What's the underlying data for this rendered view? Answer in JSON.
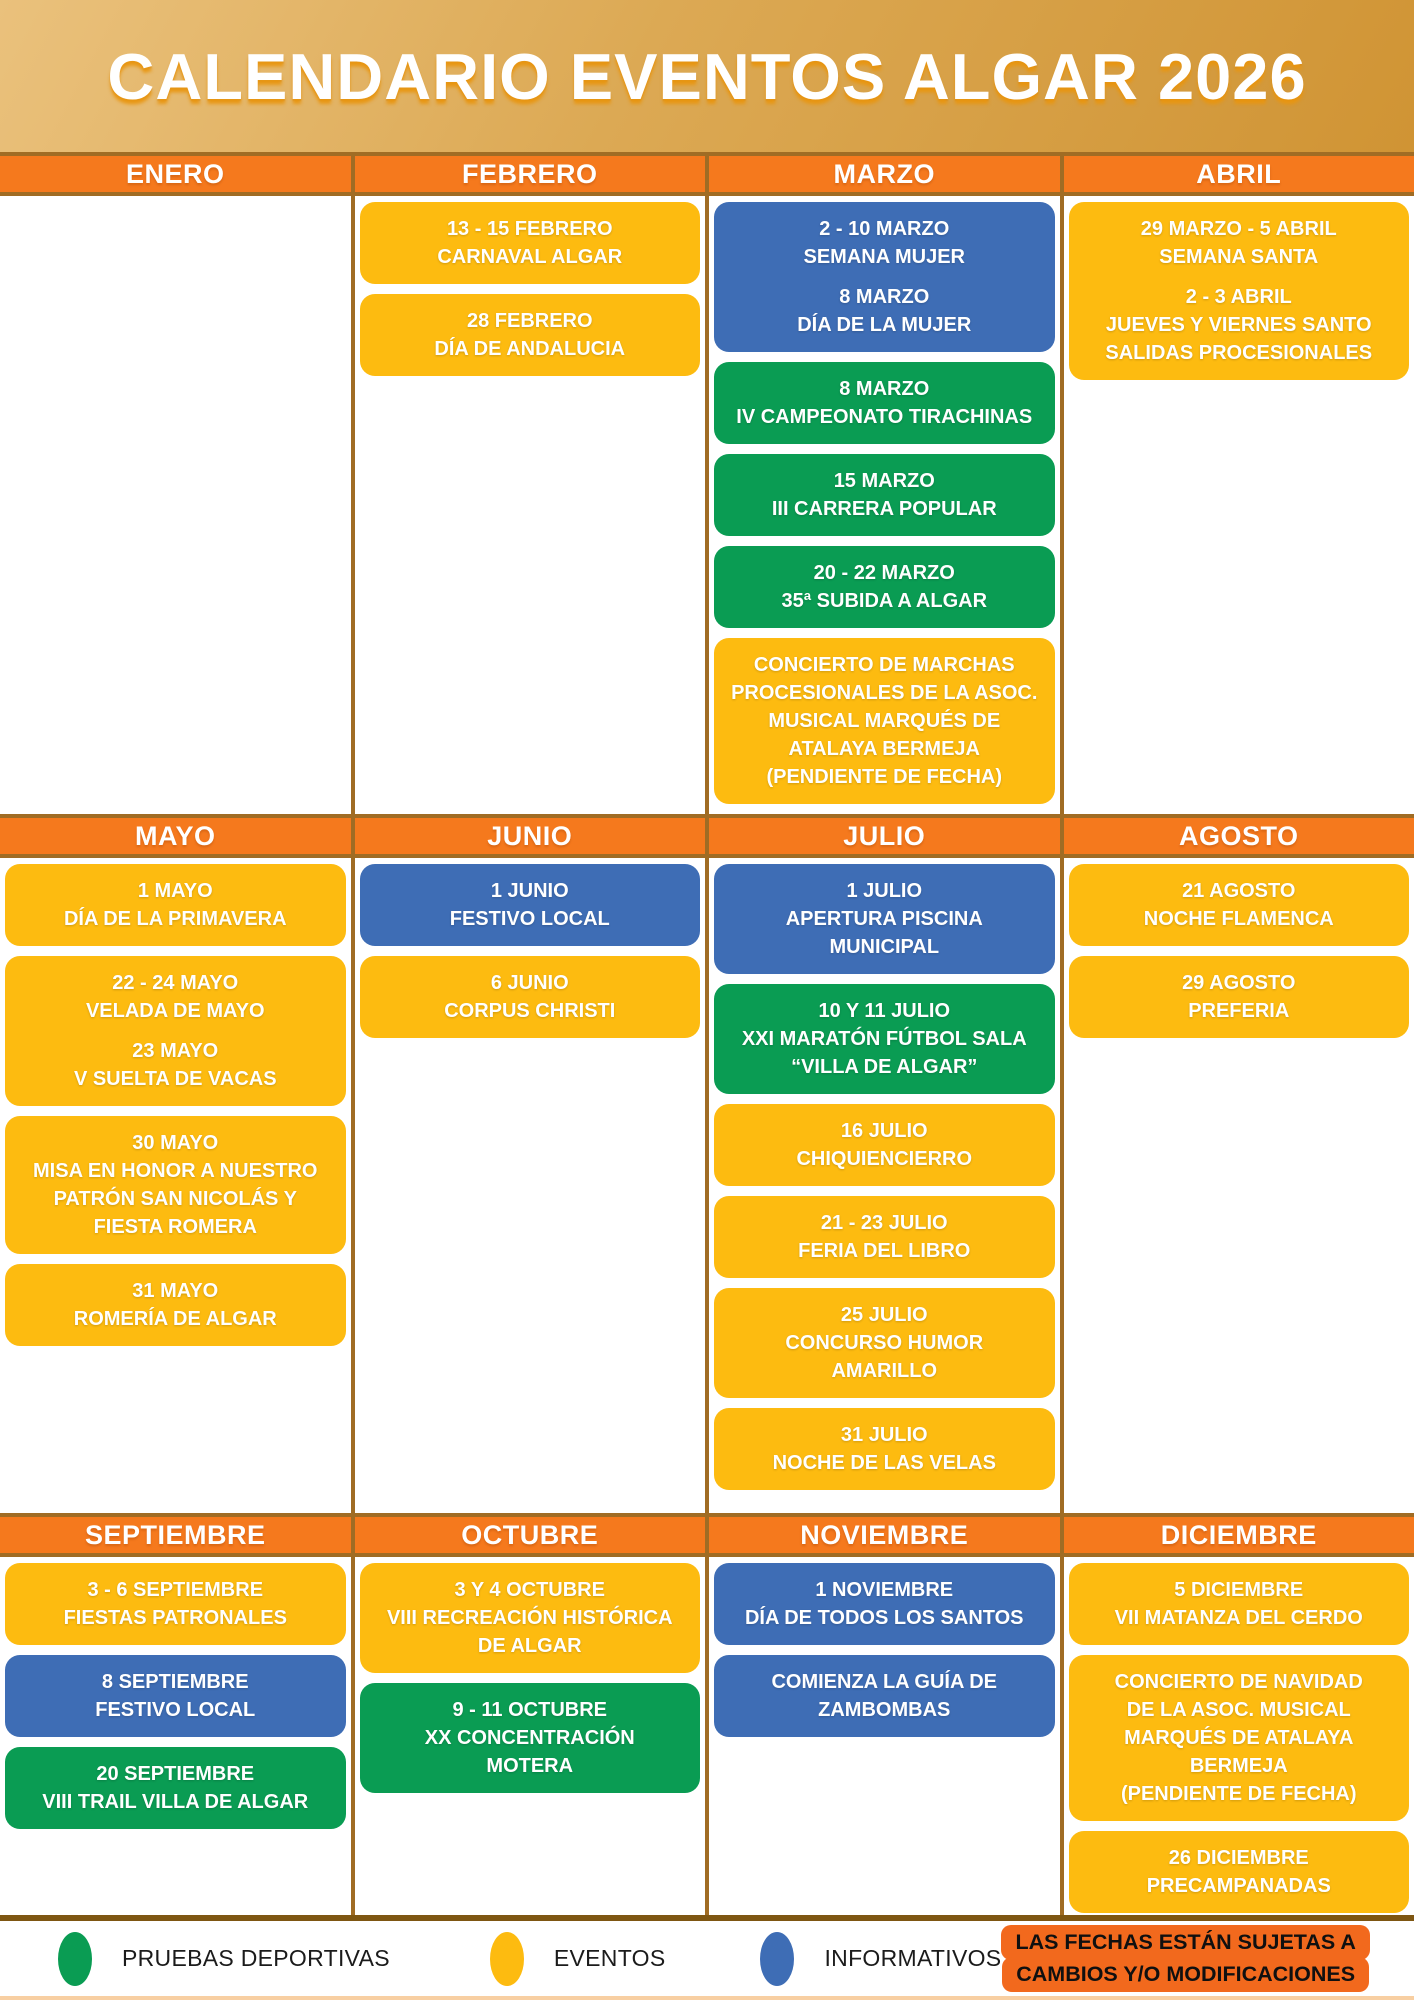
{
  "title": "CALENDARIO EVENTOS ALGAR 2026",
  "colors": {
    "header_orange": "#F5791D",
    "card_yellow": "#FDBB10",
    "card_green": "#0A9C53",
    "card_blue": "#3E6DB5",
    "grid_border": "#A06C24",
    "note_orange": "#F2691D",
    "title_gradient_start": "#EAC17C",
    "title_gradient_end": "#D09434"
  },
  "categories": {
    "yellow": "EVENTOS",
    "green": "PRUEBAS DEPORTIVAS",
    "blue": "INFORMATIVOS"
  },
  "months": [
    {
      "name": "ENERO",
      "cards": []
    },
    {
      "name": "FEBRERO",
      "cards": [
        {
          "color": "yellow",
          "entries": [
            [
              "13 - 15 FEBRERO",
              "CARNAVAL ALGAR"
            ]
          ]
        },
        {
          "color": "yellow",
          "entries": [
            [
              "28 FEBRERO",
              "DÍA DE ANDALUCIA"
            ]
          ]
        }
      ]
    },
    {
      "name": "MARZO",
      "cards": [
        {
          "color": "blue",
          "entries": [
            [
              "2 - 10 MARZO",
              "SEMANA MUJER"
            ],
            [
              "8 MARZO",
              "DÍA DE LA MUJER"
            ]
          ]
        },
        {
          "color": "green",
          "entries": [
            [
              "8 MARZO",
              "IV CAMPEONATO TIRACHINAS"
            ]
          ]
        },
        {
          "color": "green",
          "entries": [
            [
              "15 MARZO",
              "III CARRERA POPULAR"
            ]
          ]
        },
        {
          "color": "green",
          "entries": [
            [
              "20 - 22 MARZO",
              "35ª SUBIDA A ALGAR"
            ]
          ]
        },
        {
          "color": "yellow",
          "entries": [
            [
              "CONCIERTO DE MARCHAS",
              "PROCESIONALES DE LA ASOC.",
              "MUSICAL MARQUÉS DE",
              "ATALAYA BERMEJA",
              "(PENDIENTE DE FECHA)"
            ]
          ]
        }
      ]
    },
    {
      "name": "ABRIL",
      "cards": [
        {
          "color": "yellow",
          "entries": [
            [
              "29 MARZO - 5 ABRIL",
              "SEMANA SANTA"
            ],
            [
              "2 - 3 ABRIL",
              "JUEVES Y VIERNES SANTO",
              "SALIDAS PROCESIONALES"
            ]
          ]
        }
      ]
    },
    {
      "name": "MAYO",
      "cards": [
        {
          "color": "yellow",
          "entries": [
            [
              "1 MAYO",
              "DÍA DE LA PRIMAVERA"
            ]
          ]
        },
        {
          "color": "yellow",
          "entries": [
            [
              "22 - 24 MAYO",
              "VELADA DE MAYO"
            ],
            [
              "23 MAYO",
              "V SUELTA DE VACAS"
            ]
          ]
        },
        {
          "color": "yellow",
          "entries": [
            [
              "30 MAYO",
              "MISA EN HONOR A NUESTRO",
              "PATRÓN SAN NICOLÁS Y",
              "FIESTA ROMERA"
            ]
          ]
        },
        {
          "color": "yellow",
          "entries": [
            [
              "31 MAYO",
              "ROMERÍA DE ALGAR"
            ]
          ]
        }
      ]
    },
    {
      "name": "JUNIO",
      "cards": [
        {
          "color": "blue",
          "entries": [
            [
              "1 JUNIO",
              "FESTIVO LOCAL"
            ]
          ]
        },
        {
          "color": "yellow",
          "entries": [
            [
              "6 JUNIO",
              "CORPUS CHRISTI"
            ]
          ]
        }
      ]
    },
    {
      "name": "JULIO",
      "cards": [
        {
          "color": "blue",
          "entries": [
            [
              "1 JULIO",
              "APERTURA PISCINA",
              "MUNICIPAL"
            ]
          ]
        },
        {
          "color": "green",
          "entries": [
            [
              "10 Y 11 JULIO",
              "XXI MARATÓN FÚTBOL SALA",
              "“VILLA DE ALGAR”"
            ]
          ]
        },
        {
          "color": "yellow",
          "entries": [
            [
              "16 JULIO",
              "CHIQUIENCIERRO"
            ]
          ]
        },
        {
          "color": "yellow",
          "entries": [
            [
              "21 - 23 JULIO",
              "FERIA DEL LIBRO"
            ]
          ]
        },
        {
          "color": "yellow",
          "entries": [
            [
              "25 JULIO",
              "CONCURSO HUMOR",
              "AMARILLO"
            ]
          ]
        },
        {
          "color": "yellow",
          "entries": [
            [
              "31 JULIO",
              "NOCHE DE LAS VELAS"
            ]
          ]
        }
      ]
    },
    {
      "name": "AGOSTO",
      "cards": [
        {
          "color": "yellow",
          "entries": [
            [
              "21 AGOSTO",
              "NOCHE FLAMENCA"
            ]
          ]
        },
        {
          "color": "yellow",
          "entries": [
            [
              "29 AGOSTO",
              "PREFERIA"
            ]
          ]
        }
      ]
    },
    {
      "name": "SEPTIEMBRE",
      "cards": [
        {
          "color": "yellow",
          "entries": [
            [
              "3 - 6 SEPTIEMBRE",
              "FIESTAS PATRONALES"
            ]
          ]
        },
        {
          "color": "blue",
          "entries": [
            [
              "8 SEPTIEMBRE",
              "FESTIVO LOCAL"
            ]
          ]
        },
        {
          "color": "green",
          "entries": [
            [
              "20 SEPTIEMBRE",
              "VIII TRAIL VILLA DE ALGAR"
            ]
          ]
        }
      ]
    },
    {
      "name": "OCTUBRE",
      "cards": [
        {
          "color": "yellow",
          "entries": [
            [
              "3 Y 4 OCTUBRE",
              "VIII RECREACIÓN HISTÓRICA",
              "DE ALGAR"
            ]
          ]
        },
        {
          "color": "green",
          "entries": [
            [
              "9 - 11 OCTUBRE",
              "XX CONCENTRACIÓN",
              "MOTERA"
            ]
          ]
        }
      ]
    },
    {
      "name": "NOVIEMBRE",
      "cards": [
        {
          "color": "blue",
          "entries": [
            [
              "1 NOVIEMBRE",
              "DÍA DE TODOS LOS SANTOS"
            ]
          ]
        },
        {
          "color": "blue",
          "entries": [
            [
              "COMIENZA LA GUÍA DE",
              "ZAMBOMBAS"
            ]
          ]
        }
      ]
    },
    {
      "name": "DICIEMBRE",
      "cards": [
        {
          "color": "yellow",
          "entries": [
            [
              "5 DICIEMBRE",
              "VII MATANZA DEL CERDO"
            ]
          ]
        },
        {
          "color": "yellow",
          "entries": [
            [
              "CONCIERTO DE NAVIDAD",
              "DE LA ASOC. MUSICAL",
              "MARQUÉS DE ATALAYA",
              "BERMEJA",
              "(PENDIENTE DE FECHA)"
            ]
          ]
        },
        {
          "color": "yellow",
          "entries": [
            [
              "26 DICIEMBRE",
              "PRECAMPANADAS"
            ]
          ]
        }
      ]
    }
  ],
  "legend": {
    "items": [
      {
        "label": "PRUEBAS DEPORTIVAS",
        "color": "green"
      },
      {
        "label": "EVENTOS",
        "color": "yellow"
      },
      {
        "label": "INFORMATIVOS",
        "color": "blue"
      }
    ],
    "note_lines": [
      "LAS FECHAS ESTÁN SUJETAS A",
      "CAMBIOS Y/O MODIFICACIONES"
    ]
  }
}
